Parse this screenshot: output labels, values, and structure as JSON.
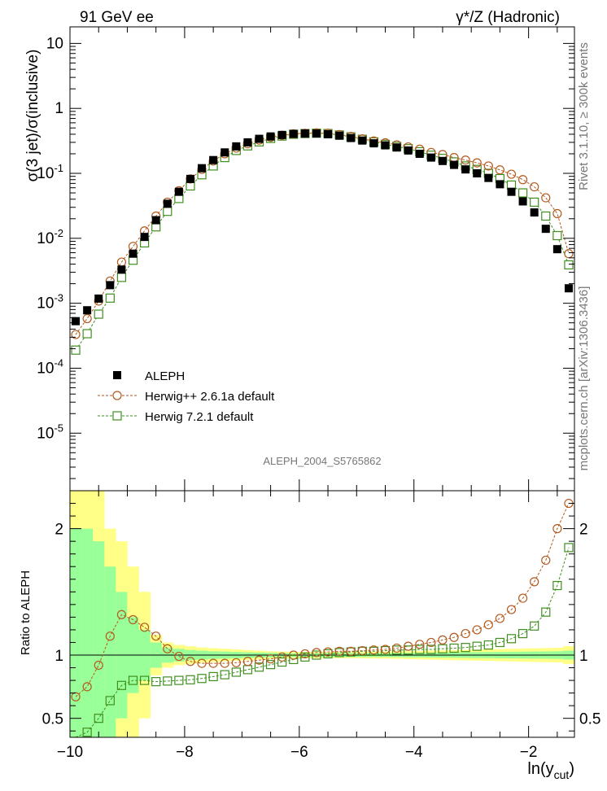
{
  "header": {
    "left": "91 GeV ee",
    "right": "γ*/Z (Hadronic)"
  },
  "side": {
    "top": "Rivet 3.1.10, ≥ 300k events",
    "bottom": "mcplots.cern.ch [arXiv:1306.3436]"
  },
  "analysis_id": "ALEPH_2004_S5765862",
  "colors": {
    "data": "#000000",
    "herwigpp": "#b35a1f",
    "herwig7": "#3f8f1f",
    "band_inner": "#99ff99",
    "band_outer": "#ffff88"
  },
  "chart_data": [
    {
      "type": "scatter",
      "panel": "main",
      "ylabel": "σ(3 jet)/σ(inclusive)",
      "xlabel": "",
      "xlim": [
        -10.0,
        -1.2
      ],
      "ylim": [
        1.3e-06,
        18
      ],
      "yscale": "log",
      "y_ticks": [
        "10",
        "1",
        "10^-1",
        "10^-2",
        "10^-3",
        "10^-4",
        "10^-5"
      ],
      "legend_position": "lower-left",
      "x": [
        -9.9,
        -9.7,
        -9.5,
        -9.3,
        -9.1,
        -8.9,
        -8.7,
        -8.5,
        -8.3,
        -8.1,
        -7.9,
        -7.7,
        -7.5,
        -7.3,
        -7.1,
        -6.9,
        -6.7,
        -6.5,
        -6.3,
        -6.1,
        -5.9,
        -5.7,
        -5.5,
        -5.3,
        -5.1,
        -4.9,
        -4.7,
        -4.5,
        -4.3,
        -4.1,
        -3.9,
        -3.7,
        -3.5,
        -3.3,
        -3.1,
        -2.9,
        -2.7,
        -2.5,
        -2.3,
        -2.1,
        -1.9,
        -1.7,
        -1.5,
        -1.3
      ],
      "series": [
        {
          "name": "ALEPH",
          "marker": "filled-square",
          "values": [
            0.00053,
            0.00078,
            0.00118,
            0.0019,
            0.0033,
            0.0058,
            0.0105,
            0.019,
            0.034,
            0.052,
            0.082,
            0.12,
            0.16,
            0.21,
            0.26,
            0.3,
            0.34,
            0.37,
            0.39,
            0.405,
            0.41,
            0.41,
            0.4,
            0.38,
            0.35,
            0.32,
            0.29,
            0.27,
            0.25,
            0.225,
            0.2,
            0.175,
            0.155,
            0.135,
            0.115,
            0.1,
            0.085,
            0.068,
            0.052,
            0.037,
            0.025,
            0.014,
            0.0068,
            0.0017
          ]
        },
        {
          "name": "Herwig++ 2.6.1a default",
          "marker": "open-circle",
          "values": [
            0.00033,
            0.00058,
            0.00108,
            0.0022,
            0.0043,
            0.0075,
            0.013,
            0.022,
            0.036,
            0.054,
            0.082,
            0.115,
            0.155,
            0.2,
            0.245,
            0.285,
            0.325,
            0.36,
            0.385,
            0.405,
            0.415,
            0.42,
            0.415,
            0.395,
            0.37,
            0.34,
            0.315,
            0.295,
            0.275,
            0.255,
            0.235,
            0.21,
            0.195,
            0.175,
            0.16,
            0.145,
            0.13,
            0.113,
            0.097,
            0.08,
            0.062,
            0.042,
            0.024,
            0.0058
          ]
        },
        {
          "name": "Herwig 7.2.1 default",
          "marker": "open-square",
          "values": [
            0.00019,
            0.00034,
            0.00068,
            0.0012,
            0.0025,
            0.0046,
            0.0085,
            0.015,
            0.026,
            0.041,
            0.064,
            0.095,
            0.13,
            0.175,
            0.225,
            0.265,
            0.305,
            0.345,
            0.375,
            0.4,
            0.41,
            0.415,
            0.41,
            0.39,
            0.365,
            0.335,
            0.305,
            0.28,
            0.26,
            0.24,
            0.215,
            0.19,
            0.17,
            0.15,
            0.13,
            0.115,
            0.1,
            0.083,
            0.066,
            0.05,
            0.036,
            0.022,
            0.011,
            0.0039
          ]
        }
      ]
    },
    {
      "type": "scatter",
      "panel": "ratio",
      "ylabel": "Ratio to ALEPH",
      "xlabel": "ln(y_cut)",
      "xlim": [
        -10.0,
        -1.2
      ],
      "ylim": [
        0.35,
        2.3
      ],
      "x_ticks": [
        -10,
        -8,
        -6,
        -4,
        -2
      ],
      "y_ticks": [
        0.5,
        1,
        2
      ],
      "reference_line": 1,
      "x": [
        -9.9,
        -9.7,
        -9.5,
        -9.3,
        -9.1,
        -8.9,
        -8.7,
        -8.5,
        -8.3,
        -8.1,
        -7.9,
        -7.7,
        -7.5,
        -7.3,
        -7.1,
        -6.9,
        -6.7,
        -6.5,
        -6.3,
        -6.1,
        -5.9,
        -5.7,
        -5.5,
        -5.3,
        -5.1,
        -4.9,
        -4.7,
        -4.5,
        -4.3,
        -4.1,
        -3.9,
        -3.7,
        -3.5,
        -3.3,
        -3.1,
        -2.9,
        -2.7,
        -2.5,
        -2.3,
        -2.1,
        -1.9,
        -1.7,
        -1.5,
        -1.3
      ],
      "series": [
        {
          "name": "Herwig++ 2.6.1a default",
          "marker": "open-circle",
          "values": [
            0.67,
            0.75,
            0.92,
            1.15,
            1.32,
            1.28,
            1.22,
            1.15,
            1.05,
            0.99,
            0.95,
            0.935,
            0.935,
            0.935,
            0.94,
            0.95,
            0.96,
            0.97,
            0.985,
            1.0,
            1.01,
            1.02,
            1.025,
            1.03,
            1.03,
            1.035,
            1.04,
            1.045,
            1.055,
            1.07,
            1.085,
            1.1,
            1.12,
            1.14,
            1.17,
            1.2,
            1.24,
            1.29,
            1.36,
            1.45,
            1.58,
            1.75,
            2.0,
            2.2
          ]
        },
        {
          "name": "Herwig 7.2.1 default",
          "marker": "open-square",
          "values": [
            0.27,
            0.39,
            0.5,
            0.64,
            0.76,
            0.8,
            0.8,
            0.79,
            0.795,
            0.8,
            0.805,
            0.815,
            0.83,
            0.845,
            0.865,
            0.885,
            0.905,
            0.925,
            0.945,
            0.965,
            0.985,
            1.0,
            1.01,
            1.02,
            1.025,
            1.03,
            1.03,
            1.035,
            1.04,
            1.04,
            1.045,
            1.045,
            1.05,
            1.055,
            1.06,
            1.07,
            1.08,
            1.1,
            1.13,
            1.17,
            1.23,
            1.34,
            1.55,
            1.85
          ]
        }
      ],
      "bands": {
        "inner_halfwidth": [
          1.0,
          1.0,
          0.9,
          0.7,
          0.5,
          0.3,
          0.2,
          0.1,
          0.06,
          0.05,
          0.04,
          0.035,
          0.03,
          0.028,
          0.025,
          0.022,
          0.02,
          0.018,
          0.016,
          0.015,
          0.015,
          0.015,
          0.015,
          0.015,
          0.015,
          0.015,
          0.015,
          0.015,
          0.016,
          0.017,
          0.018,
          0.019,
          0.02,
          0.021,
          0.022,
          0.023,
          0.024,
          0.025,
          0.026,
          0.027,
          0.028,
          0.029,
          0.03,
          0.035
        ],
        "outer_halfwidth": [
          1.3,
          1.3,
          1.3,
          1.0,
          0.9,
          0.7,
          0.5,
          0.16,
          0.1,
          0.08,
          0.07,
          0.06,
          0.055,
          0.05,
          0.045,
          0.04,
          0.035,
          0.03,
          0.028,
          0.025,
          0.025,
          0.025,
          0.025,
          0.025,
          0.025,
          0.026,
          0.027,
          0.028,
          0.03,
          0.032,
          0.034,
          0.036,
          0.038,
          0.04,
          0.042,
          0.044,
          0.046,
          0.048,
          0.05,
          0.052,
          0.054,
          0.056,
          0.058,
          0.07
        ]
      }
    }
  ]
}
